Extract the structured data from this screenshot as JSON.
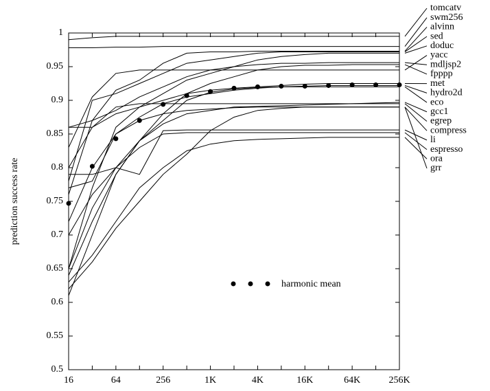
{
  "chart_data": {
    "type": "line",
    "y_label": "prediction success rate",
    "categories": [
      "16",
      null,
      "64",
      null,
      "256",
      null,
      "1K",
      null,
      "4K",
      null,
      "16K",
      null,
      "64K",
      null,
      "256K"
    ],
    "ylim": [
      0.5,
      1
    ],
    "yticks": [
      0.5,
      0.55,
      0.6,
      0.65,
      0.7,
      0.75,
      0.8,
      0.85,
      0.9,
      0.95,
      1
    ],
    "series": [
      {
        "name": "tomcatv",
        "color": "#000000",
        "style": "line",
        "values": [
          0.99,
          0.993,
          0.995,
          0.995,
          0.995,
          0.995,
          0.995,
          0.995,
          0.995,
          0.995,
          0.995,
          0.995,
          0.995,
          0.995,
          0.995
        ]
      },
      {
        "name": "swm256",
        "color": "#000000",
        "style": "line",
        "values": [
          0.978,
          0.978,
          0.979,
          0.979,
          0.98,
          0.98,
          0.98,
          0.98,
          0.98,
          0.98,
          0.98,
          0.98,
          0.98,
          0.98,
          0.98
        ]
      },
      {
        "name": "alvinn",
        "color": "#000000",
        "style": "line",
        "values": [
          0.86,
          0.87,
          0.915,
          0.93,
          0.955,
          0.97,
          0.972,
          0.972,
          0.973,
          0.973,
          0.973,
          0.973,
          0.973,
          0.973,
          0.973
        ]
      },
      {
        "name": "sed",
        "color": "#000000",
        "style": "line",
        "values": [
          0.78,
          0.9,
          0.91,
          0.925,
          0.94,
          0.955,
          0.96,
          0.965,
          0.97,
          0.972,
          0.972,
          0.972,
          0.972,
          0.972,
          0.972
        ]
      },
      {
        "name": "doduc",
        "color": "#000000",
        "style": "line",
        "values": [
          0.65,
          0.77,
          0.86,
          0.89,
          0.91,
          0.93,
          0.94,
          0.95,
          0.96,
          0.965,
          0.968,
          0.97,
          0.97,
          0.97,
          0.97
        ]
      },
      {
        "name": "yacc",
        "color": "#000000",
        "style": "line",
        "values": [
          0.83,
          0.905,
          0.94,
          0.945,
          0.945,
          0.945,
          0.945,
          0.945,
          0.945,
          0.945,
          0.945,
          0.945,
          0.945,
          0.945,
          0.945
        ]
      },
      {
        "name": "mdljsp2",
        "color": "#000000",
        "style": "line",
        "values": [
          0.76,
          0.87,
          0.885,
          0.905,
          0.92,
          0.935,
          0.945,
          0.95,
          0.953,
          0.955,
          0.955,
          0.956,
          0.956,
          0.956,
          0.956
        ]
      },
      {
        "name": "fpppp",
        "color": "#000000",
        "style": "line",
        "values": [
          0.61,
          0.7,
          0.79,
          0.84,
          0.88,
          0.91,
          0.925,
          0.935,
          0.945,
          0.95,
          0.952,
          0.952,
          0.953,
          0.953,
          0.953
        ]
      },
      {
        "name": "met",
        "color": "#000000",
        "style": "line",
        "values": [
          0.8,
          0.86,
          0.88,
          0.89,
          0.9,
          0.91,
          0.915,
          0.918,
          0.92,
          0.922,
          0.924,
          0.925,
          0.925,
          0.925,
          0.925
        ]
      },
      {
        "name": "hydro2d",
        "color": "#000000",
        "style": "line",
        "values": [
          0.72,
          0.8,
          0.85,
          0.875,
          0.895,
          0.905,
          0.91,
          0.915,
          0.918,
          0.92,
          0.921,
          0.922,
          0.922,
          0.922,
          0.922
        ]
      },
      {
        "name": "eco",
        "color": "#000000",
        "style": "line",
        "values": [
          0.64,
          0.72,
          0.79,
          0.84,
          0.87,
          0.9,
          0.912,
          0.917,
          0.919,
          0.92,
          0.92,
          0.92,
          0.92,
          0.92,
          0.92
        ]
      },
      {
        "name": "gcc1",
        "color": "#000000",
        "style": "line",
        "values": [
          0.65,
          0.74,
          0.8,
          0.84,
          0.865,
          0.88,
          0.885,
          0.89,
          0.891,
          0.892,
          0.893,
          0.894,
          0.895,
          0.896,
          0.897
        ]
      },
      {
        "name": "egrep",
        "color": "#000000",
        "style": "line",
        "values": [
          0.86,
          0.86,
          0.89,
          0.895,
          0.895,
          0.895,
          0.895,
          0.895,
          0.895,
          0.895,
          0.895,
          0.895,
          0.895,
          0.895,
          0.895
        ]
      },
      {
        "name": "compress",
        "color": "#000000",
        "style": "line",
        "values": [
          0.77,
          0.78,
          0.85,
          0.87,
          0.88,
          0.885,
          0.887,
          0.889,
          0.89,
          0.89,
          0.89,
          0.89,
          0.89,
          0.89,
          0.89
        ]
      },
      {
        "name": "li",
        "color": "#000000",
        "style": "line",
        "values": [
          0.79,
          0.79,
          0.8,
          0.79,
          0.855,
          0.856,
          0.856,
          0.856,
          0.856,
          0.856,
          0.856,
          0.856,
          0.856,
          0.856,
          0.856
        ]
      },
      {
        "name": "espresso",
        "color": "#000000",
        "style": "line",
        "values": [
          0.7,
          0.76,
          0.8,
          0.83,
          0.85,
          0.852,
          0.852,
          0.852,
          0.852,
          0.852,
          0.852,
          0.852,
          0.852,
          0.852,
          0.852
        ]
      },
      {
        "name": "ora",
        "color": "#000000",
        "style": "line",
        "values": [
          0.63,
          0.67,
          0.72,
          0.77,
          0.8,
          0.825,
          0.835,
          0.84,
          0.842,
          0.843,
          0.844,
          0.845,
          0.845,
          0.845,
          0.845
        ]
      },
      {
        "name": "grr",
        "color": "#000000",
        "style": "line",
        "values": [
          0.62,
          0.66,
          0.71,
          0.75,
          0.79,
          0.82,
          0.855,
          0.875,
          0.885,
          0.888,
          0.89,
          0.89,
          0.89,
          0.89,
          0.89
        ]
      },
      {
        "name": "harmonic mean",
        "color": "#000000",
        "style": "markers",
        "values": [
          0.747,
          0.802,
          0.843,
          0.87,
          0.894,
          0.907,
          0.913,
          0.918,
          0.92,
          0.921,
          0.921,
          0.922,
          0.923,
          0.923,
          0.923
        ]
      }
    ]
  }
}
